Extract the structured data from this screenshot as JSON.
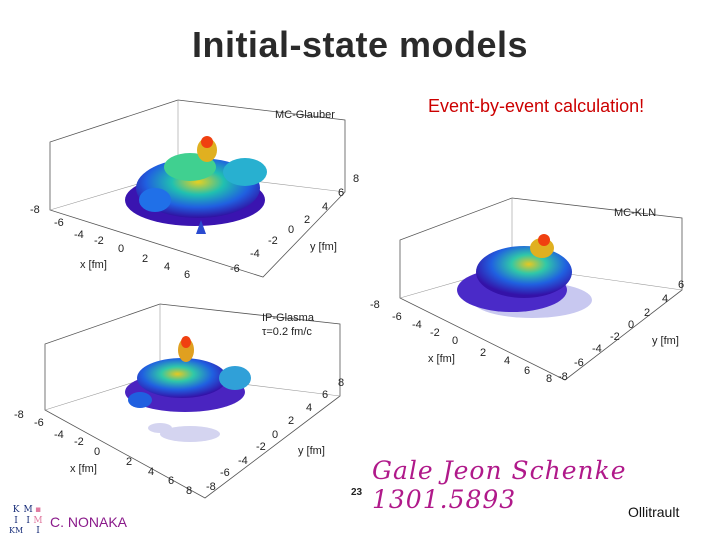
{
  "slide": {
    "title": "Initial-state models",
    "annotation": "Event-by-event calculation!",
    "reference": "Gale Jeon Schenke 1301.5893",
    "page_number": "23",
    "author": "C. NONAKA",
    "credit": "Ollitrault"
  },
  "logo": {
    "letters": [
      "K",
      "M",
      "I",
      "I",
      "M",
      "KM",
      "I"
    ],
    "colors": {
      "primary": "#1a2f7a",
      "accent": "#e07aa0"
    }
  },
  "plots": [
    {
      "label": "MC-Glauber",
      "sublabel": "",
      "x_axis": "x [fm]",
      "y_axis": "y [fm]",
      "x_ticks": [
        "-8",
        "-6",
        "-4",
        "-2",
        "0",
        "2",
        "4",
        "6"
      ],
      "y_ticks": [
        "-6",
        "-4",
        "-2",
        "0",
        "2",
        "4",
        "6",
        "8"
      ]
    },
    {
      "label": "MC-KLN",
      "sublabel": "",
      "x_axis": "x [fm]",
      "y_axis": "y [fm]",
      "x_ticks": [
        "-8",
        "-6",
        "-4",
        "-2",
        "0",
        "2",
        "4",
        "6",
        "8"
      ],
      "y_ticks": [
        "-8",
        "-6",
        "-4",
        "-2",
        "0",
        "2",
        "4",
        "6"
      ]
    },
    {
      "label": "IP-Glasma",
      "sublabel": "τ=0.2 fm/c",
      "x_axis": "x [fm]",
      "y_axis": "y [fm]",
      "x_ticks": [
        "-8",
        "-6",
        "-4",
        "-2",
        "0",
        "2",
        "4",
        "6",
        "8"
      ],
      "y_ticks": [
        "-8",
        "-6",
        "-4",
        "-2",
        "0",
        "2",
        "4",
        "6",
        "8"
      ]
    }
  ],
  "colors": {
    "title": "#2a2a2a",
    "annotation": "#cc0000",
    "reference": "#b0198a",
    "author": "#8a1a8a"
  }
}
